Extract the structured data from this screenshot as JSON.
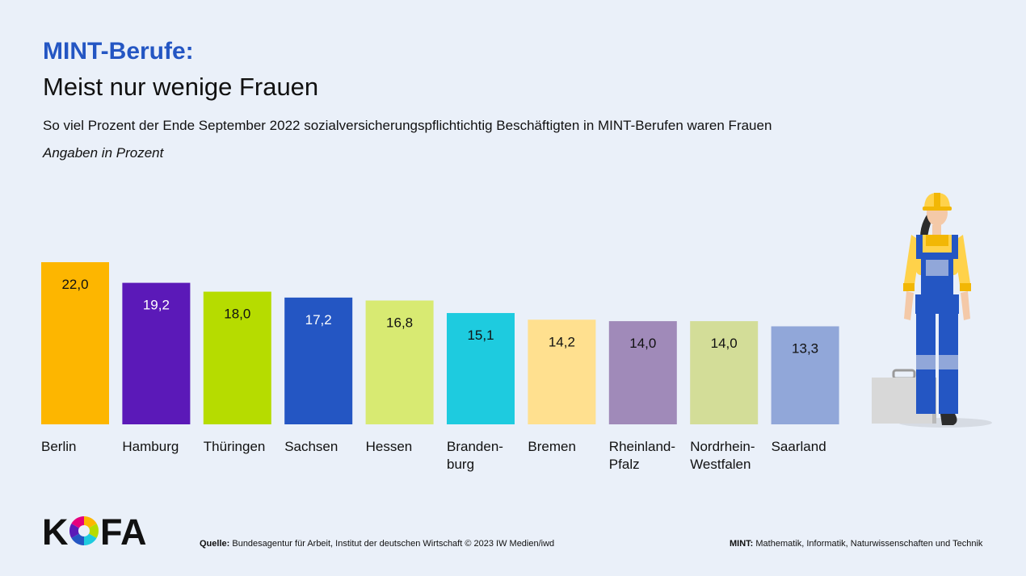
{
  "header": {
    "title_line1": "MINT-Berufe:",
    "title_line2": "Meist nur wenige Frauen",
    "subtitle": "So viel Prozent der Ende September 2022 sozialversicherungspflichtichtig Beschäftigten in MINT-Berufen waren Frauen",
    "unit_note": "Angaben in Prozent"
  },
  "chart_data": {
    "type": "bar",
    "title": "MINT-Berufe: Meist nur wenige Frauen",
    "ylabel": "Angaben in Prozent",
    "xlabel": "",
    "ylim": [
      0,
      22
    ],
    "categories": [
      [
        "Berlin"
      ],
      [
        "Hamburg"
      ],
      [
        "Thüringen"
      ],
      [
        "Sachsen"
      ],
      [
        "Hessen"
      ],
      [
        "Branden-",
        "burg"
      ],
      [
        "Bremen"
      ],
      [
        "Rheinland-",
        "Pfalz"
      ],
      [
        "Nordrhein-",
        "Westfalen"
      ],
      [
        "Saarland"
      ]
    ],
    "values": [
      22.0,
      19.2,
      18.0,
      17.2,
      16.8,
      15.1,
      14.2,
      14.0,
      14.0,
      13.3
    ],
    "value_labels": [
      "22,0",
      "19,2",
      "18,0",
      "17,2",
      "16,8",
      "15,1",
      "14,2",
      "14,0",
      "14,0",
      "13,3"
    ],
    "colors": [
      "#fdb600",
      "#5b19b8",
      "#b6dc00",
      "#2456c3",
      "#d8ea72",
      "#1ecbdf",
      "#ffe08f",
      "#a08ab9",
      "#d3dd98",
      "#91a7d9"
    ],
    "label_colors": [
      "#111111",
      "#ffffff",
      "#111111",
      "#ffffff",
      "#111111",
      "#111111",
      "#111111",
      "#111111",
      "#111111",
      "#111111"
    ]
  },
  "footer": {
    "logo": {
      "left": "K",
      "right": "FA"
    },
    "source_label": "Quelle:",
    "source_text": "Bundesagentur für Arbeit, Institut der deutschen Wirtschaft © 2023 IW Medien/iwd",
    "mint_label": "MINT:",
    "mint_text": "Mathematik, Informatik, Naturwissenschaften und Technik"
  },
  "colors": {
    "background": "#eaf0f9",
    "accent": "#2456c3"
  },
  "icons": {
    "illustration": "female-worker-with-toolbox-icon",
    "logo_mark": "aperture-icon"
  }
}
